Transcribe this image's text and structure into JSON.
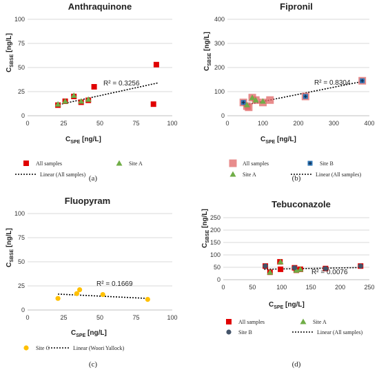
{
  "chart_data": [
    {
      "type": "scatter",
      "title": "Anthraquinone",
      "caption": "(a)",
      "xlabel_main": "C",
      "xlabel_sub": "SPE",
      "xlabel_unit": " [ng/L]",
      "ylabel_main": "C",
      "ylabel_sub": "SBSE",
      "ylabel_unit": " [ng/L]",
      "xlim": [
        0,
        100
      ],
      "ylim": [
        0,
        100
      ],
      "xticks": [
        "0",
        "25",
        "50",
        "75",
        "100"
      ],
      "yticks": [
        "0",
        "25",
        "50",
        "75",
        "100"
      ],
      "r2_label": "R² = 0.3256",
      "trend": {
        "x": [
          20,
          90
        ],
        "y": [
          11,
          34
        ]
      },
      "legend": [
        "All samples",
        "Site A",
        "Linear (All samples)"
      ],
      "series": [
        {
          "name": "All samples",
          "marker": "square",
          "color": "#e00000",
          "x": [
            21,
            26,
            32,
            37,
            42,
            46,
            87,
            89
          ],
          "y": [
            11,
            15,
            20,
            14,
            16,
            30,
            12,
            53
          ]
        },
        {
          "name": "Site A",
          "marker": "triangle",
          "color": "#70ad47",
          "x": [
            21,
            26,
            32,
            37,
            42
          ],
          "y": [
            12,
            15,
            21,
            15,
            17
          ]
        }
      ]
    },
    {
      "type": "scatter",
      "title": "Fipronil",
      "caption": "(b)",
      "xlabel_main": "C",
      "xlabel_sub": "SPE",
      "xlabel_unit": " [ng/L]",
      "ylabel_main": "C",
      "ylabel_sub": "SBSE",
      "ylabel_unit": " [ng/L]",
      "xlim": [
        0,
        400
      ],
      "ylim": [
        0,
        400
      ],
      "xticks": [
        "0",
        "100",
        "200",
        "300",
        "400"
      ],
      "yticks": [
        "0",
        "100",
        "200",
        "300",
        "400"
      ],
      "r2_label": "R² = 0.8304",
      "trend": {
        "x": [
          45,
          380
        ],
        "y": [
          43,
          142
        ]
      },
      "legend": [
        "All samples",
        "Site B",
        "Site A",
        "Linear (All samples)"
      ],
      "series": [
        {
          "name": "All samples",
          "marker": "square-big",
          "color": "#e06666",
          "x": [
            45,
            55,
            60,
            70,
            80,
            100,
            120,
            220,
            380
          ],
          "y": [
            55,
            40,
            35,
            75,
            65,
            55,
            65,
            80,
            145
          ]
        },
        {
          "name": "Site B",
          "marker": "square-cross",
          "color": "#2e75b6",
          "x": [
            45,
            220,
            380
          ],
          "y": [
            55,
            80,
            145
          ]
        },
        {
          "name": "Site A",
          "marker": "triangle",
          "color": "#70ad47",
          "x": [
            55,
            70,
            80,
            100
          ],
          "y": [
            45,
            75,
            65,
            60
          ]
        }
      ]
    },
    {
      "type": "scatter",
      "title": "Fluopyram",
      "caption": "(c)",
      "xlabel_main": "C",
      "xlabel_sub": "SPE",
      "xlabel_unit": " [ng/L]",
      "ylabel_main": "C",
      "ylabel_sub": "SBSE",
      "ylabel_unit": " [ng/L]",
      "xlim": [
        0,
        100
      ],
      "ylim": [
        0,
        100
      ],
      "xticks": [
        "0",
        "25",
        "50",
        "75",
        "100"
      ],
      "yticks": [
        "0",
        "25",
        "50",
        "75",
        "100"
      ],
      "r2_label": "R² = 0.1669",
      "trend": {
        "x": [
          21,
          83
        ],
        "y": [
          16.5,
          12
        ]
      },
      "legend": [
        "Site C",
        "Linear (Woori Yallock)"
      ],
      "series": [
        {
          "name": "Site C",
          "marker": "circle",
          "color": "#ffc000",
          "x": [
            21,
            34,
            36,
            52,
            83
          ],
          "y": [
            12,
            17,
            21,
            16,
            11
          ]
        }
      ]
    },
    {
      "type": "scatter",
      "title": "Tebuconazole",
      "caption": "(d)",
      "xlabel_main": "C",
      "xlabel_sub": "SPE",
      "xlabel_unit": " [ng/L]",
      "ylabel_main": "C",
      "ylabel_sub": "SBSE",
      "ylabel_unit": " [ng/L]",
      "xlim": [
        0,
        250
      ],
      "ylim": [
        0,
        250
      ],
      "xticks": [
        "0",
        "50",
        "100",
        "150",
        "200",
        "250"
      ],
      "yticks": [
        "0",
        "50",
        "100",
        "150",
        "200",
        "250"
      ],
      "r2_label": "R² = 0.0076",
      "trend": {
        "x": [
          70,
          235
        ],
        "y": [
          42,
          49
        ]
      },
      "legend": [
        "All samples",
        "Site A",
        "Site B",
        "Linear (All samples)"
      ],
      "series": [
        {
          "name": "All samples",
          "marker": "square",
          "color": "#e00000",
          "x": [
            72,
            80,
            97,
            98,
            122,
            125,
            132,
            175,
            235
          ],
          "y": [
            55,
            30,
            72,
            42,
            48,
            38,
            42,
            45,
            55
          ]
        },
        {
          "name": "Site A",
          "marker": "triangle",
          "color": "#70ad47",
          "x": [
            80,
            98,
            125,
            132
          ],
          "y": [
            30,
            72,
            38,
            42
          ]
        },
        {
          "name": "Site B",
          "marker": "circle",
          "color": "#44546a",
          "x": [
            72,
            122,
            175,
            235
          ],
          "y": [
            55,
            48,
            45,
            55
          ]
        }
      ]
    }
  ]
}
